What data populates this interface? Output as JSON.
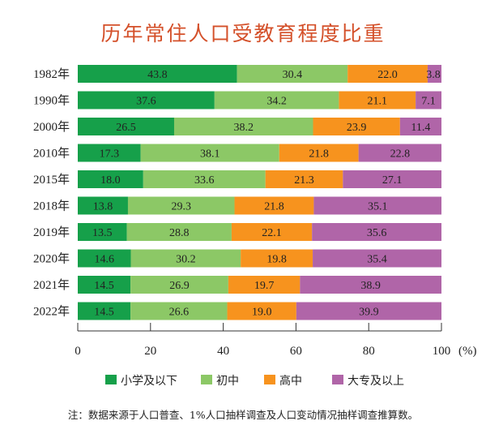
{
  "chart_data": {
    "type": "bar",
    "orientation": "horizontal",
    "stacked": true,
    "title": "历年常住人口受教育程度比重",
    "categories": [
      "1982年",
      "1990年",
      "2000年",
      "2010年",
      "2015年",
      "2018年",
      "2019年",
      "2020年",
      "2021年",
      "2022年"
    ],
    "series": [
      {
        "name": "小学及以下",
        "color": "#16a04a",
        "values": [
          43.8,
          37.6,
          26.5,
          17.3,
          18.0,
          13.8,
          13.5,
          14.6,
          14.5,
          14.5
        ]
      },
      {
        "name": "初中",
        "color": "#8cc866",
        "values": [
          30.4,
          34.2,
          38.2,
          38.1,
          33.6,
          29.3,
          28.8,
          30.2,
          26.9,
          26.6
        ]
      },
      {
        "name": "高中",
        "color": "#f7931e",
        "values": [
          22.0,
          21.1,
          23.9,
          21.8,
          21.3,
          21.8,
          22.1,
          19.8,
          19.7,
          19.0
        ]
      },
      {
        "name": "大专及以上",
        "color": "#b065a8",
        "values": [
          3.8,
          7.1,
          11.4,
          22.8,
          27.1,
          35.1,
          35.6,
          35.4,
          38.9,
          39.9
        ]
      }
    ],
    "xlim": [
      0,
      100
    ],
    "xticks": [
      "0",
      "20",
      "40",
      "60",
      "80",
      "100"
    ],
    "xunit": "(%)",
    "grid": false,
    "legend": "bottom",
    "note": "注：数据来源于人口普查、1%人口抽样调查及人口变动情况抽样调查推算数。"
  }
}
